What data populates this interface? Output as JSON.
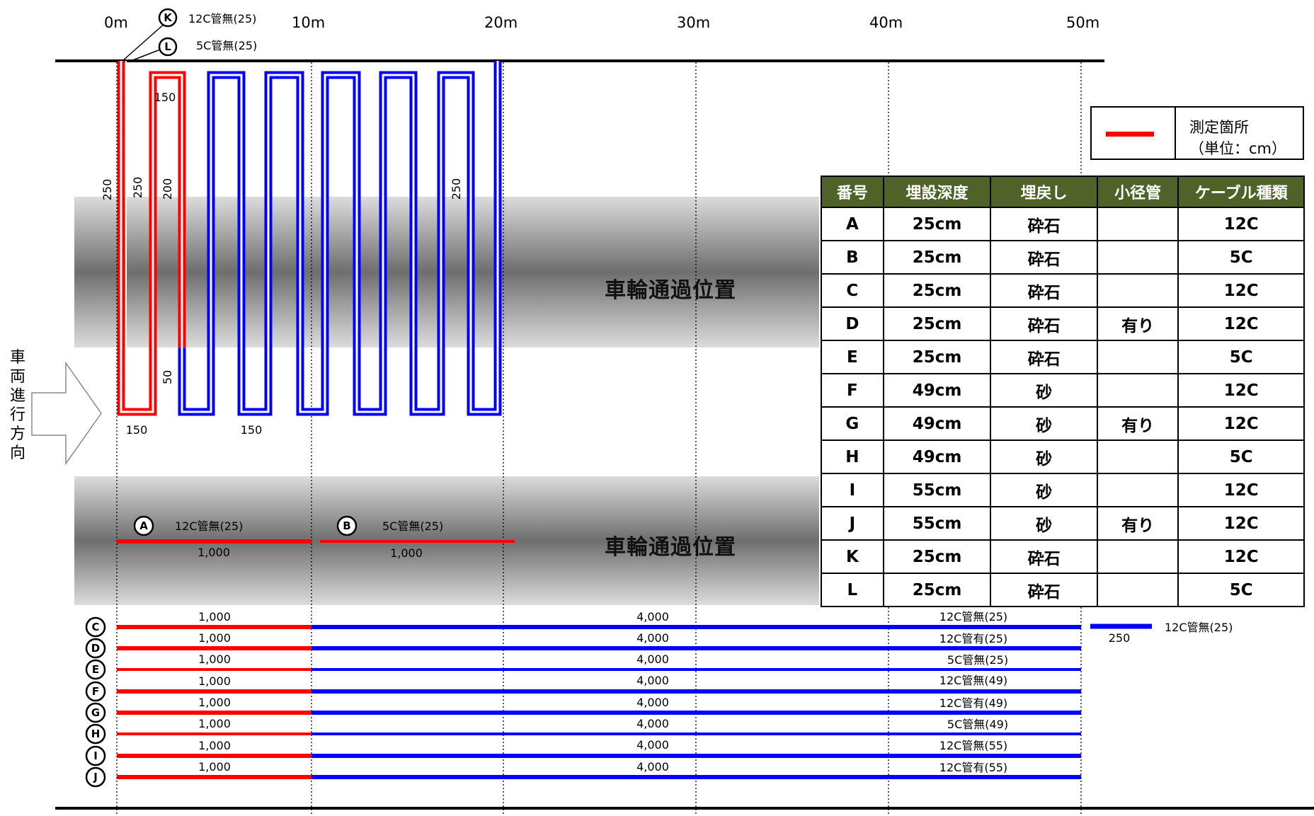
{
  "scale": {
    "labels": [
      "0m",
      "10m",
      "20m",
      "30m",
      "40m",
      "50m"
    ]
  },
  "top_markers": [
    {
      "id": "K",
      "text": "12C管無(25)"
    },
    {
      "id": "L",
      "text": "5C管無(25)"
    }
  ],
  "serpentine": {
    "dims": {
      "v250_left": "250",
      "v250_inner": "250",
      "v200": "200",
      "v250_right": "250",
      "v50": "50",
      "top150": "150",
      "bottom150_left": "150",
      "bottom150_mid": "150"
    }
  },
  "wheel_label": "車輪通過位置",
  "direction_label": [
    "車",
    "両",
    "進",
    "行",
    "方",
    "向"
  ],
  "lower_band_cables": [
    {
      "id": "A",
      "text": "12C管無(25)",
      "length": "1,000"
    },
    {
      "id": "B",
      "text": "5C管無(25)",
      "length": "1,000"
    }
  ],
  "long_cables": [
    {
      "id": "C",
      "red_len": "1,000",
      "blue_len": "4,000",
      "text": "12C管無(25)"
    },
    {
      "id": "D",
      "red_len": "1,000",
      "blue_len": "4,000",
      "text": "12C管有(25)"
    },
    {
      "id": "E",
      "red_len": "1,000",
      "blue_len": "4,000",
      "text": "5C管無(25)"
    },
    {
      "id": "F",
      "red_len": "1,000",
      "blue_len": "4,000",
      "text": "12C管無(49)"
    },
    {
      "id": "G",
      "red_len": "1,000",
      "blue_len": "4,000",
      "text": "12C管有(49)"
    },
    {
      "id": "H",
      "red_len": "1,000",
      "blue_len": "4,000",
      "text": "5C管無(49)"
    },
    {
      "id": "I",
      "red_len": "1,000",
      "blue_len": "4,000",
      "text": "12C管無(55)"
    },
    {
      "id": "J",
      "red_len": "1,000",
      "blue_len": "4,000",
      "text": "12C管有(55)"
    }
  ],
  "extra_cable": {
    "length": "250",
    "text": "12C管無(25)"
  },
  "legend": {
    "line1": "測定箇所",
    "line2": "（単位：cm）"
  },
  "table": {
    "headers": [
      "番号",
      "埋設深度",
      "埋戻し",
      "小径管",
      "ケーブル種類"
    ],
    "rows": [
      [
        "A",
        "25cm",
        "砕石",
        "",
        "12C"
      ],
      [
        "B",
        "25cm",
        "砕石",
        "",
        "5C"
      ],
      [
        "C",
        "25cm",
        "砕石",
        "",
        "12C"
      ],
      [
        "D",
        "25cm",
        "砕石",
        "有り",
        "12C"
      ],
      [
        "E",
        "25cm",
        "砕石",
        "",
        "5C"
      ],
      [
        "F",
        "49cm",
        "砂",
        "",
        "12C"
      ],
      [
        "G",
        "49cm",
        "砂",
        "有り",
        "12C"
      ],
      [
        "H",
        "49cm",
        "砂",
        "",
        "5C"
      ],
      [
        "I",
        "55cm",
        "砂",
        "",
        "12C"
      ],
      [
        "J",
        "55cm",
        "砂",
        "有り",
        "12C"
      ],
      [
        "K",
        "25cm",
        "砕石",
        "",
        "12C"
      ],
      [
        "L",
        "25cm",
        "砕石",
        "",
        "5C"
      ]
    ]
  },
  "colors": {
    "measured": "#ff0000",
    "unmeasured": "#0000ff",
    "header_bg": "#4f6228"
  }
}
